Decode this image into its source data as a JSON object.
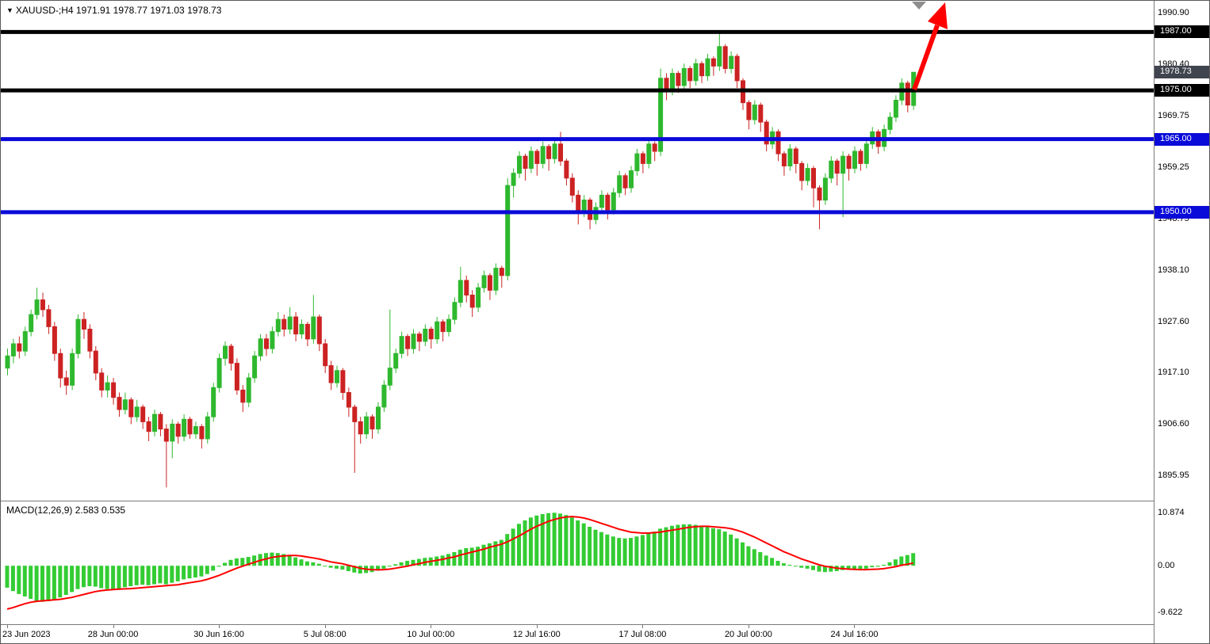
{
  "header": {
    "collapse_icon": "triangle-down",
    "symbol": "XAUUSD-",
    "timeframe": "H4",
    "ohlc": {
      "open": "1971.91",
      "high": "1978.77",
      "low": "1971.03",
      "close": "1978.73"
    },
    "display": "XAUUSD-;H4 1971.91 1978.77 1971.03 1978.73"
  },
  "chart_data": {
    "type": "candlestick",
    "title": "XAUUSD- H4 chart with support/resistance levels, red up arrow and MACD",
    "legend_position": "top-left",
    "grid": false,
    "y_axis": {
      "max": 1993.4,
      "min": 1890.8,
      "ticks": [
        "1990.90",
        "1980.40",
        "1969.75",
        "1959.25",
        "1948.75",
        "1938.10",
        "1927.60",
        "1917.10",
        "1906.60",
        "1895.95"
      ]
    },
    "x_axis": {
      "labels": [
        {
          "index": 0,
          "text": "23 Jun 2023"
        },
        {
          "index": 18,
          "text": "28 Jun 00:00"
        },
        {
          "index": 36,
          "text": "30 Jun 16:00"
        },
        {
          "index": 54,
          "text": "5 Jul 08:00"
        },
        {
          "index": 72,
          "text": "10 Jul 00:00"
        },
        {
          "index": 90,
          "text": "12 Jul 16:00"
        },
        {
          "index": 108,
          "text": "17 Jul 08:00"
        },
        {
          "index": 126,
          "text": "20 Jul 00:00"
        },
        {
          "index": 144,
          "text": "24 Jul 16:00"
        }
      ]
    },
    "price_lines": [
      {
        "price": 1987.0,
        "label": "1987.00",
        "color": "#000000",
        "thickness": 5,
        "kind": "resistance"
      },
      {
        "price": 1975.0,
        "label": "1975.00",
        "color": "#000000",
        "thickness": 5,
        "kind": "support"
      },
      {
        "price": 1965.0,
        "label": "1965.00",
        "color": "#0a0ad9",
        "thickness": 5,
        "kind": "support"
      },
      {
        "price": 1950.0,
        "label": "1950.00",
        "color": "#0a0ad9",
        "thickness": 5,
        "kind": "support"
      }
    ],
    "current_price": {
      "value": 1978.73,
      "label": "1978.73",
      "badge_color": "#3f444e"
    },
    "colors": {
      "bull": "#2eb82e",
      "bear": "#cc2222",
      "macd_histogram": "#33cc33",
      "macd_signal": "#ff0000",
      "arrow": "#ff0000",
      "shift_marker": "#8e8e8e"
    },
    "candles": [
      [
        1918.0,
        1922.0,
        1916.5,
        1920.5
      ],
      [
        1920.5,
        1924.0,
        1919.0,
        1923.0
      ],
      [
        1923.0,
        1924.5,
        1920.0,
        1921.5
      ],
      [
        1921.5,
        1926.5,
        1920.5,
        1925.5
      ],
      [
        1925.5,
        1930.0,
        1924.5,
        1929.0
      ],
      [
        1929.0,
        1934.5,
        1928.0,
        1932.0
      ],
      [
        1932.0,
        1933.5,
        1928.5,
        1930.0
      ],
      [
        1930.0,
        1931.0,
        1925.0,
        1926.5
      ],
      [
        1926.5,
        1927.5,
        1919.5,
        1921.0
      ],
      [
        1921.0,
        1922.0,
        1914.0,
        1916.0
      ],
      [
        1916.0,
        1917.5,
        1912.5,
        1914.5
      ],
      [
        1914.5,
        1922.0,
        1913.5,
        1921.0
      ],
      [
        1921.0,
        1929.0,
        1920.0,
        1928.0
      ],
      [
        1928.0,
        1929.5,
        1924.0,
        1926.0
      ],
      [
        1926.0,
        1927.0,
        1920.0,
        1921.5
      ],
      [
        1921.5,
        1922.5,
        1915.5,
        1917.0
      ],
      [
        1917.0,
        1918.0,
        1912.0,
        1913.5
      ],
      [
        1913.5,
        1916.5,
        1912.0,
        1915.0
      ],
      [
        1915.0,
        1916.0,
        1910.5,
        1912.0
      ],
      [
        1912.0,
        1913.0,
        1908.0,
        1909.5
      ],
      [
        1909.5,
        1913.0,
        1908.5,
        1911.5
      ],
      [
        1911.5,
        1912.0,
        1906.5,
        1908.0
      ],
      [
        1908.0,
        1911.5,
        1907.0,
        1910.0
      ],
      [
        1910.0,
        1910.5,
        1905.5,
        1907.0
      ],
      [
        1907.0,
        1908.0,
        1903.0,
        1905.0
      ],
      [
        1905.0,
        1909.5,
        1904.0,
        1908.5
      ],
      [
        1908.5,
        1909.0,
        1904.0,
        1905.5
      ],
      [
        1905.5,
        1906.5,
        1893.5,
        1903.0
      ],
      [
        1903.0,
        1907.5,
        1899.5,
        1906.5
      ],
      [
        1906.5,
        1907.0,
        1902.5,
        1904.0
      ],
      [
        1904.0,
        1908.5,
        1903.0,
        1907.5
      ],
      [
        1907.5,
        1908.0,
        1903.5,
        1904.5
      ],
      [
        1904.5,
        1907.0,
        1903.5,
        1906.0
      ],
      [
        1906.0,
        1906.5,
        1901.5,
        1903.5
      ],
      [
        1903.5,
        1909.0,
        1902.5,
        1908.0
      ],
      [
        1908.0,
        1915.0,
        1907.0,
        1914.0
      ],
      [
        1914.0,
        1921.0,
        1913.0,
        1920.0
      ],
      [
        1920.0,
        1923.5,
        1918.5,
        1922.5
      ],
      [
        1922.5,
        1923.0,
        1917.5,
        1919.0
      ],
      [
        1919.0,
        1920.0,
        1912.5,
        1913.5
      ],
      [
        1913.5,
        1914.5,
        1909.0,
        1911.0
      ],
      [
        1911.0,
        1917.0,
        1910.0,
        1916.0
      ],
      [
        1916.0,
        1921.5,
        1915.0,
        1920.5
      ],
      [
        1920.5,
        1925.0,
        1919.5,
        1924.0
      ],
      [
        1924.0,
        1925.0,
        1920.5,
        1922.0
      ],
      [
        1922.0,
        1926.5,
        1921.0,
        1925.5
      ],
      [
        1925.5,
        1929.5,
        1924.5,
        1928.0
      ],
      [
        1928.0,
        1929.0,
        1924.5,
        1926.0
      ],
      [
        1926.0,
        1930.5,
        1925.0,
        1928.5
      ],
      [
        1928.5,
        1929.5,
        1923.5,
        1925.0
      ],
      [
        1925.0,
        1928.0,
        1924.0,
        1927.0
      ],
      [
        1927.0,
        1927.5,
        1922.5,
        1924.0
      ],
      [
        1924.0,
        1933.0,
        1923.0,
        1928.5
      ],
      [
        1928.5,
        1929.0,
        1921.5,
        1923.0
      ],
      [
        1923.0,
        1924.0,
        1917.0,
        1918.5
      ],
      [
        1918.5,
        1919.5,
        1913.5,
        1915.0
      ],
      [
        1915.0,
        1918.5,
        1914.0,
        1917.5
      ],
      [
        1917.5,
        1918.0,
        1911.5,
        1913.0
      ],
      [
        1913.0,
        1914.0,
        1908.0,
        1910.0
      ],
      [
        1910.0,
        1910.5,
        1896.5,
        1907.0
      ],
      [
        1907.0,
        1908.0,
        1902.5,
        1904.5
      ],
      [
        1904.5,
        1909.0,
        1903.5,
        1908.0
      ],
      [
        1908.0,
        1908.5,
        1903.5,
        1905.5
      ],
      [
        1905.5,
        1911.0,
        1904.5,
        1910.0
      ],
      [
        1910.0,
        1915.5,
        1909.0,
        1914.5
      ],
      [
        1914.5,
        1930.0,
        1913.5,
        1918.0
      ],
      [
        1918.0,
        1922.0,
        1917.0,
        1921.0
      ],
      [
        1921.0,
        1925.5,
        1920.0,
        1924.5
      ],
      [
        1924.5,
        1925.0,
        1920.5,
        1922.0
      ],
      [
        1922.0,
        1926.0,
        1921.0,
        1925.0
      ],
      [
        1925.0,
        1925.5,
        1921.5,
        1923.5
      ],
      [
        1923.5,
        1927.0,
        1922.5,
        1926.0
      ],
      [
        1926.0,
        1926.5,
        1922.0,
        1924.0
      ],
      [
        1924.0,
        1928.5,
        1923.0,
        1927.5
      ],
      [
        1927.5,
        1928.0,
        1923.5,
        1925.5
      ],
      [
        1925.5,
        1929.0,
        1924.5,
        1928.0
      ],
      [
        1928.0,
        1932.5,
        1927.0,
        1931.5
      ],
      [
        1931.5,
        1938.8,
        1930.5,
        1936.0
      ],
      [
        1936.0,
        1937.0,
        1931.5,
        1933.0
      ],
      [
        1933.0,
        1934.0,
        1928.5,
        1930.5
      ],
      [
        1930.5,
        1935.5,
        1929.5,
        1934.5
      ],
      [
        1934.5,
        1938.0,
        1933.5,
        1937.0
      ],
      [
        1937.0,
        1937.5,
        1932.0,
        1934.0
      ],
      [
        1934.0,
        1939.5,
        1933.0,
        1938.5
      ],
      [
        1938.5,
        1939.0,
        1934.5,
        1937.0
      ],
      [
        1937.0,
        1957.0,
        1936.0,
        1955.5
      ],
      [
        1955.5,
        1959.0,
        1953.0,
        1958.0
      ],
      [
        1958.0,
        1962.5,
        1957.0,
        1961.5
      ],
      [
        1961.5,
        1962.0,
        1956.5,
        1959.0
      ],
      [
        1959.0,
        1963.5,
        1958.0,
        1962.5
      ],
      [
        1962.5,
        1963.0,
        1957.5,
        1960.0
      ],
      [
        1960.0,
        1964.5,
        1959.0,
        1963.5
      ],
      [
        1963.5,
        1964.0,
        1958.5,
        1961.0
      ],
      [
        1961.0,
        1965.0,
        1960.0,
        1964.0
      ],
      [
        1964.0,
        1966.5,
        1959.5,
        1960.5
      ],
      [
        1960.5,
        1961.0,
        1955.5,
        1957.0
      ],
      [
        1957.0,
        1958.0,
        1952.0,
        1953.5
      ],
      [
        1953.5,
        1954.5,
        1947.5,
        1950.0
      ],
      [
        1950.0,
        1953.5,
        1949.0,
        1952.5
      ],
      [
        1952.5,
        1953.0,
        1946.5,
        1948.5
      ],
      [
        1948.5,
        1952.0,
        1947.5,
        1951.0
      ],
      [
        1951.0,
        1954.5,
        1950.0,
        1953.5
      ],
      [
        1953.5,
        1954.0,
        1948.5,
        1950.5
      ],
      [
        1950.5,
        1955.0,
        1949.5,
        1954.0
      ],
      [
        1954.0,
        1958.5,
        1953.0,
        1957.5
      ],
      [
        1957.5,
        1958.0,
        1953.5,
        1955.0
      ],
      [
        1955.0,
        1959.5,
        1954.0,
        1958.5
      ],
      [
        1958.5,
        1963.0,
        1957.5,
        1962.0
      ],
      [
        1962.0,
        1962.5,
        1958.0,
        1960.0
      ],
      [
        1960.0,
        1965.0,
        1959.0,
        1964.0
      ],
      [
        1964.0,
        1964.5,
        1960.5,
        1962.5
      ],
      [
        1962.5,
        1979.5,
        1961.5,
        1977.5
      ],
      [
        1977.5,
        1978.5,
        1973.0,
        1975.0
      ],
      [
        1975.0,
        1979.5,
        1974.0,
        1978.5
      ],
      [
        1978.5,
        1979.0,
        1974.5,
        1976.0
      ],
      [
        1976.0,
        1980.5,
        1975.0,
        1979.5
      ],
      [
        1979.5,
        1980.0,
        1975.5,
        1977.0
      ],
      [
        1977.0,
        1981.5,
        1976.0,
        1980.5
      ],
      [
        1980.5,
        1981.0,
        1976.5,
        1978.0
      ],
      [
        1978.0,
        1982.5,
        1977.0,
        1981.5
      ],
      [
        1981.5,
        1982.0,
        1978.0,
        1980.0
      ],
      [
        1980.0,
        1987.3,
        1979.0,
        1984.0
      ],
      [
        1984.0,
        1984.5,
        1978.5,
        1979.5
      ],
      [
        1979.5,
        1983.0,
        1978.5,
        1982.0
      ],
      [
        1982.0,
        1982.5,
        1975.5,
        1977.0
      ],
      [
        1977.0,
        1977.5,
        1971.0,
        1972.5
      ],
      [
        1972.5,
        1973.0,
        1967.0,
        1969.0
      ],
      [
        1969.0,
        1973.0,
        1968.0,
        1972.0
      ],
      [
        1972.0,
        1972.5,
        1966.5,
        1968.5
      ],
      [
        1968.5,
        1969.0,
        1962.5,
        1964.0
      ],
      [
        1964.0,
        1967.5,
        1963.0,
        1966.5
      ],
      [
        1966.5,
        1967.0,
        1960.5,
        1962.0
      ],
      [
        1962.0,
        1962.5,
        1957.5,
        1959.5
      ],
      [
        1959.5,
        1964.0,
        1958.5,
        1963.0
      ],
      [
        1963.0,
        1963.5,
        1958.0,
        1960.0
      ],
      [
        1960.0,
        1960.5,
        1954.5,
        1956.5
      ],
      [
        1956.5,
        1960.0,
        1955.5,
        1959.0
      ],
      [
        1959.0,
        1959.5,
        1951.0,
        1955.0
      ],
      [
        1955.0,
        1955.5,
        1946.5,
        1952.5
      ],
      [
        1952.5,
        1958.0,
        1951.5,
        1957.0
      ],
      [
        1957.0,
        1961.5,
        1956.0,
        1960.5
      ],
      [
        1960.5,
        1961.0,
        1955.5,
        1958.0
      ],
      [
        1958.0,
        1962.5,
        1949.0,
        1961.5
      ],
      [
        1961.5,
        1962.0,
        1956.5,
        1959.0
      ],
      [
        1959.0,
        1963.5,
        1958.0,
        1962.5
      ],
      [
        1962.5,
        1963.0,
        1958.5,
        1960.0
      ],
      [
        1960.0,
        1965.0,
        1959.0,
        1964.0
      ],
      [
        1964.0,
        1967.5,
        1963.0,
        1966.5
      ],
      [
        1966.5,
        1967.0,
        1962.0,
        1963.5
      ],
      [
        1963.5,
        1968.0,
        1962.5,
        1967.0
      ],
      [
        1967.0,
        1970.5,
        1966.0,
        1969.5
      ],
      [
        1969.5,
        1974.0,
        1968.5,
        1973.0
      ],
      [
        1973.0,
        1977.5,
        1972.0,
        1976.5
      ],
      [
        1976.5,
        1977.0,
        1970.5,
        1972.0
      ],
      [
        1971.91,
        1978.77,
        1971.03,
        1978.73
      ]
    ],
    "trend_arrow": {
      "description": "thick red arrow pointing up-right through 1987 resistance",
      "color": "#ff0000"
    },
    "macd": {
      "label": "MACD(12,26,9) 2.583 0.535",
      "params": "12,26,9",
      "macd_value": "2.583",
      "signal_value": "0.535",
      "y_ticks": [
        "10.874",
        "0.00",
        "-9.622"
      ],
      "range": {
        "max": 13.2,
        "min": -12.0
      },
      "histogram": [
        -4.5,
        -5.2,
        -5.8,
        -6.3,
        -6.8,
        -7.2,
        -7.4,
        -7.3,
        -7.0,
        -6.5,
        -6.0,
        -5.4,
        -4.8,
        -4.4,
        -4.2,
        -4.3,
        -4.6,
        -4.8,
        -4.9,
        -4.7,
        -4.4,
        -4.2,
        -4.0,
        -3.9,
        -4.0,
        -3.8,
        -3.6,
        -3.8,
        -3.5,
        -3.2,
        -2.8,
        -2.6,
        -2.4,
        -2.2,
        -1.7,
        -1.0,
        -0.2,
        0.6,
        1.2,
        1.5,
        1.6,
        1.8,
        2.1,
        2.4,
        2.6,
        2.7,
        2.6,
        2.4,
        2.1,
        1.7,
        1.3,
        0.9,
        0.7,
        0.4,
        0.0,
        -0.4,
        -0.6,
        -0.8,
        -1.1,
        -1.4,
        -1.6,
        -1.5,
        -1.3,
        -1.0,
        -0.6,
        -0.1,
        0.3,
        0.7,
        1.0,
        1.2,
        1.4,
        1.6,
        1.7,
        1.9,
        2.1,
        2.4,
        2.8,
        3.3,
        3.6,
        3.7,
        3.9,
        4.3,
        4.6,
        5.0,
        5.3,
        6.5,
        7.6,
        8.6,
        9.3,
        9.9,
        10.3,
        10.6,
        10.8,
        10.87,
        10.7,
        10.4,
        9.9,
        9.3,
        8.7,
        8.0,
        7.4,
        6.9,
        6.4,
        6.0,
        5.7,
        5.6,
        5.7,
        6.0,
        6.3,
        6.7,
        7.0,
        7.6,
        7.9,
        8.2,
        8.4,
        8.5,
        8.5,
        8.4,
        8.2,
        8.0,
        7.7,
        7.5,
        7.0,
        6.4,
        5.6,
        4.8,
        4.0,
        3.4,
        2.8,
        2.1,
        1.6,
        1.0,
        0.5,
        0.2,
        -0.1,
        -0.4,
        -0.6,
        -0.9,
        -1.2,
        -1.3,
        -1.2,
        -1.1,
        -0.9,
        -0.8,
        -0.7,
        -0.8,
        -0.6,
        -0.3,
        -0.2,
        0.2,
        0.7,
        1.3,
        1.9,
        2.2,
        2.583
      ],
      "signal": [
        -8.9,
        -8.6,
        -8.2,
        -7.8,
        -7.5,
        -7.3,
        -7.2,
        -7.1,
        -7.0,
        -6.9,
        -6.7,
        -6.5,
        -6.2,
        -5.9,
        -5.6,
        -5.3,
        -5.1,
        -5.0,
        -4.9,
        -4.8,
        -4.75,
        -4.7,
        -4.6,
        -4.5,
        -4.4,
        -4.3,
        -4.2,
        -4.1,
        -4.0,
        -3.9,
        -3.7,
        -3.5,
        -3.3,
        -3.1,
        -2.8,
        -2.4,
        -2.0,
        -1.5,
        -1.0,
        -0.5,
        -0.1,
        0.3,
        0.7,
        1.1,
        1.4,
        1.7,
        1.9,
        2.0,
        2.1,
        2.1,
        2.0,
        1.8,
        1.6,
        1.4,
        1.1,
        0.8,
        0.6,
        0.4,
        0.1,
        -0.2,
        -0.5,
        -0.7,
        -0.8,
        -0.85,
        -0.8,
        -0.7,
        -0.5,
        -0.3,
        -0.1,
        0.2,
        0.4,
        0.7,
        0.9,
        1.1,
        1.3,
        1.6,
        1.8,
        2.2,
        2.5,
        2.8,
        3.1,
        3.4,
        3.8,
        4.1,
        4.4,
        4.9,
        5.5,
        6.1,
        6.8,
        7.5,
        8.1,
        8.6,
        9.1,
        9.5,
        9.8,
        10.0,
        10.1,
        10.0,
        9.8,
        9.5,
        9.1,
        8.7,
        8.3,
        7.9,
        7.5,
        7.2,
        6.9,
        6.8,
        6.7,
        6.7,
        6.8,
        6.9,
        7.1,
        7.3,
        7.5,
        7.7,
        7.9,
        8.0,
        8.1,
        8.1,
        8.0,
        7.9,
        7.8,
        7.6,
        7.3,
        6.9,
        6.4,
        5.9,
        5.3,
        4.7,
        4.1,
        3.5,
        2.9,
        2.4,
        1.9,
        1.4,
        1.0,
        0.6,
        0.2,
        -0.1,
        -0.3,
        -0.5,
        -0.6,
        -0.7,
        -0.75,
        -0.8,
        -0.8,
        -0.75,
        -0.7,
        -0.6,
        -0.4,
        -0.2,
        0.1,
        0.3,
        0.535
      ]
    }
  }
}
